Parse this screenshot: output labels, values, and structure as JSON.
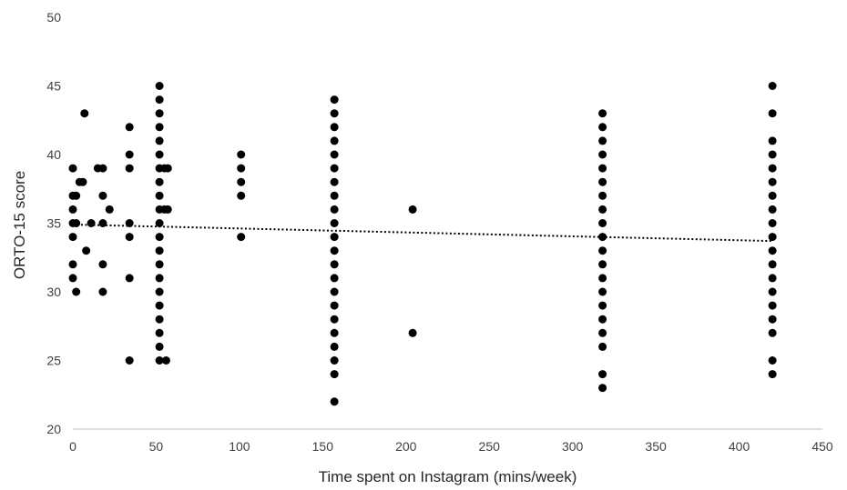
{
  "chart_data": {
    "type": "scatter",
    "title": "",
    "xlabel": "Time spent on Instagram (mins/week)",
    "ylabel": "ORTO-15 score",
    "xlim": [
      0,
      450
    ],
    "ylim": [
      20,
      50
    ],
    "xticks": [
      "0",
      "50",
      "100",
      "150",
      "200",
      "250",
      "300",
      "350",
      "400",
      "450"
    ],
    "yticks": [
      "20",
      "25",
      "30",
      "35",
      "40",
      "45",
      "50"
    ],
    "grid": false,
    "legend": "none",
    "marker_color": "#000000",
    "trendline": {
      "style": "dotted",
      "color": "#000000",
      "x": [
        0,
        420
      ],
      "y": [
        34.9,
        33.7
      ]
    },
    "points": [
      {
        "x": 0,
        "y": 39
      },
      {
        "x": 0,
        "y": 37
      },
      {
        "x": 0,
        "y": 36
      },
      {
        "x": 0,
        "y": 35
      },
      {
        "x": 0,
        "y": 34
      },
      {
        "x": 0,
        "y": 32
      },
      {
        "x": 0,
        "y": 31
      },
      {
        "x": 2,
        "y": 37
      },
      {
        "x": 2,
        "y": 35
      },
      {
        "x": 2,
        "y": 30
      },
      {
        "x": 4,
        "y": 38
      },
      {
        "x": 6,
        "y": 38
      },
      {
        "x": 7,
        "y": 43
      },
      {
        "x": 8,
        "y": 33
      },
      {
        "x": 11,
        "y": 35
      },
      {
        "x": 15,
        "y": 39
      },
      {
        "x": 18,
        "y": 39
      },
      {
        "x": 18,
        "y": 37
      },
      {
        "x": 18,
        "y": 35
      },
      {
        "x": 18,
        "y": 32
      },
      {
        "x": 18,
        "y": 30
      },
      {
        "x": 22,
        "y": 36
      },
      {
        "x": 34,
        "y": 42
      },
      {
        "x": 34,
        "y": 40
      },
      {
        "x": 34,
        "y": 39
      },
      {
        "x": 34,
        "y": 35
      },
      {
        "x": 34,
        "y": 34
      },
      {
        "x": 34,
        "y": 31
      },
      {
        "x": 34,
        "y": 25
      },
      {
        "x": 52,
        "y": 45
      },
      {
        "x": 52,
        "y": 44
      },
      {
        "x": 52,
        "y": 43
      },
      {
        "x": 52,
        "y": 42
      },
      {
        "x": 52,
        "y": 41
      },
      {
        "x": 52,
        "y": 40
      },
      {
        "x": 52,
        "y": 39
      },
      {
        "x": 52,
        "y": 38
      },
      {
        "x": 52,
        "y": 37
      },
      {
        "x": 52,
        "y": 36
      },
      {
        "x": 52,
        "y": 35
      },
      {
        "x": 52,
        "y": 34
      },
      {
        "x": 52,
        "y": 33
      },
      {
        "x": 52,
        "y": 32
      },
      {
        "x": 52,
        "y": 31
      },
      {
        "x": 52,
        "y": 30
      },
      {
        "x": 52,
        "y": 29
      },
      {
        "x": 52,
        "y": 28
      },
      {
        "x": 52,
        "y": 27
      },
      {
        "x": 52,
        "y": 26
      },
      {
        "x": 52,
        "y": 25
      },
      {
        "x": 55,
        "y": 39
      },
      {
        "x": 55,
        "y": 36
      },
      {
        "x": 56,
        "y": 25
      },
      {
        "x": 57,
        "y": 39
      },
      {
        "x": 57,
        "y": 36
      },
      {
        "x": 101,
        "y": 40
      },
      {
        "x": 101,
        "y": 39
      },
      {
        "x": 101,
        "y": 38
      },
      {
        "x": 101,
        "y": 37
      },
      {
        "x": 101,
        "y": 34
      },
      {
        "x": 157,
        "y": 44
      },
      {
        "x": 157,
        "y": 43
      },
      {
        "x": 157,
        "y": 42
      },
      {
        "x": 157,
        "y": 41
      },
      {
        "x": 157,
        "y": 40
      },
      {
        "x": 157,
        "y": 39
      },
      {
        "x": 157,
        "y": 38
      },
      {
        "x": 157,
        "y": 37
      },
      {
        "x": 157,
        "y": 36
      },
      {
        "x": 157,
        "y": 35
      },
      {
        "x": 157,
        "y": 34
      },
      {
        "x": 157,
        "y": 33
      },
      {
        "x": 157,
        "y": 32
      },
      {
        "x": 157,
        "y": 31
      },
      {
        "x": 157,
        "y": 30
      },
      {
        "x": 157,
        "y": 29
      },
      {
        "x": 157,
        "y": 28
      },
      {
        "x": 157,
        "y": 27
      },
      {
        "x": 157,
        "y": 26
      },
      {
        "x": 157,
        "y": 25
      },
      {
        "x": 157,
        "y": 24
      },
      {
        "x": 157,
        "y": 22
      },
      {
        "x": 204,
        "y": 36
      },
      {
        "x": 204,
        "y": 27
      },
      {
        "x": 318,
        "y": 43
      },
      {
        "x": 318,
        "y": 42
      },
      {
        "x": 318,
        "y": 41
      },
      {
        "x": 318,
        "y": 40
      },
      {
        "x": 318,
        "y": 39
      },
      {
        "x": 318,
        "y": 38
      },
      {
        "x": 318,
        "y": 37
      },
      {
        "x": 318,
        "y": 36
      },
      {
        "x": 318,
        "y": 35
      },
      {
        "x": 318,
        "y": 34
      },
      {
        "x": 318,
        "y": 33
      },
      {
        "x": 318,
        "y": 32
      },
      {
        "x": 318,
        "y": 31
      },
      {
        "x": 318,
        "y": 30
      },
      {
        "x": 318,
        "y": 29
      },
      {
        "x": 318,
        "y": 28
      },
      {
        "x": 318,
        "y": 27
      },
      {
        "x": 318,
        "y": 26
      },
      {
        "x": 318,
        "y": 24
      },
      {
        "x": 318,
        "y": 23
      },
      {
        "x": 420,
        "y": 45
      },
      {
        "x": 420,
        "y": 43
      },
      {
        "x": 420,
        "y": 41
      },
      {
        "x": 420,
        "y": 40
      },
      {
        "x": 420,
        "y": 39
      },
      {
        "x": 420,
        "y": 38
      },
      {
        "x": 420,
        "y": 37
      },
      {
        "x": 420,
        "y": 36
      },
      {
        "x": 420,
        "y": 35
      },
      {
        "x": 420,
        "y": 34
      },
      {
        "x": 420,
        "y": 33
      },
      {
        "x": 420,
        "y": 32
      },
      {
        "x": 420,
        "y": 31
      },
      {
        "x": 420,
        "y": 30
      },
      {
        "x": 420,
        "y": 29
      },
      {
        "x": 420,
        "y": 28
      },
      {
        "x": 420,
        "y": 27
      },
      {
        "x": 420,
        "y": 25
      },
      {
        "x": 420,
        "y": 24
      }
    ]
  }
}
